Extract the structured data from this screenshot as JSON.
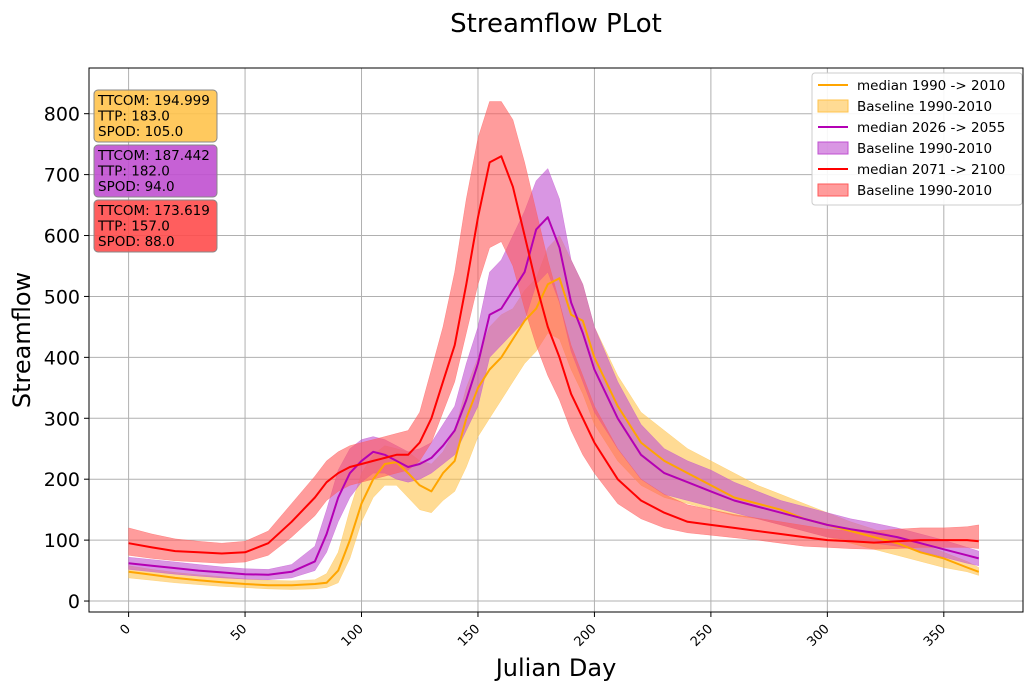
{
  "chart_data": {
    "type": "line",
    "title": "Streamflow PLot",
    "xlabel": "Julian Day",
    "ylabel": "Streamflow",
    "xlim": [
      -17,
      384
    ],
    "ylim": [
      -18,
      875
    ],
    "grid": true,
    "legend_position": "top-right",
    "xticks": [
      0,
      50,
      100,
      150,
      200,
      250,
      300,
      350
    ],
    "yticks": [
      0,
      100,
      200,
      300,
      400,
      500,
      600,
      700,
      800
    ],
    "x": [
      0,
      10,
      20,
      30,
      40,
      50,
      60,
      70,
      80,
      85,
      90,
      95,
      100,
      105,
      110,
      115,
      120,
      125,
      130,
      135,
      140,
      145,
      150,
      155,
      160,
      165,
      170,
      175,
      180,
      185,
      190,
      195,
      200,
      210,
      220,
      230,
      240,
      250,
      260,
      270,
      280,
      290,
      300,
      310,
      320,
      330,
      340,
      350,
      360,
      365
    ],
    "series": [
      {
        "name": "median 1990 -> 2010",
        "band_label": "Baseline 1990-2010",
        "color": "#FFA500",
        "band_color": "#FFC34D",
        "median": [
          48,
          43,
          38,
          34,
          31,
          28,
          26,
          26,
          28,
          30,
          50,
          100,
          160,
          200,
          225,
          228,
          210,
          190,
          180,
          210,
          230,
          300,
          350,
          380,
          400,
          430,
          460,
          480,
          520,
          530,
          470,
          460,
          400,
          320,
          260,
          230,
          210,
          190,
          170,
          160,
          150,
          135,
          125,
          115,
          105,
          95,
          80,
          70,
          55,
          48
        ],
        "lower": [
          38,
          34,
          30,
          27,
          24,
          22,
          20,
          19,
          20,
          22,
          30,
          70,
          130,
          170,
          190,
          190,
          170,
          150,
          145,
          165,
          180,
          220,
          270,
          300,
          330,
          360,
          390,
          410,
          440,
          430,
          380,
          340,
          290,
          230,
          190,
          170,
          160,
          150,
          140,
          135,
          125,
          115,
          105,
          95,
          85,
          75,
          65,
          55,
          48,
          42
        ],
        "upper": [
          58,
          52,
          47,
          43,
          40,
          36,
          34,
          33,
          35,
          45,
          80,
          150,
          210,
          240,
          255,
          250,
          245,
          230,
          225,
          245,
          280,
          350,
          400,
          450,
          470,
          480,
          510,
          530,
          580,
          600,
          560,
          520,
          450,
          370,
          310,
          280,
          250,
          230,
          210,
          190,
          175,
          160,
          145,
          130,
          118,
          105,
          95,
          80,
          65,
          55
        ]
      },
      {
        "name": "median 2026 -> 2055",
        "band_label": "Baseline 1990-2010",
        "color": "#B400B4",
        "band_color": "#C050D0",
        "median": [
          62,
          58,
          54,
          50,
          47,
          44,
          43,
          48,
          65,
          110,
          170,
          210,
          230,
          245,
          240,
          230,
          220,
          225,
          235,
          255,
          280,
          330,
          390,
          470,
          480,
          510,
          540,
          610,
          630,
          580,
          490,
          440,
          380,
          300,
          240,
          210,
          195,
          180,
          165,
          155,
          145,
          135,
          125,
          118,
          112,
          105,
          95,
          85,
          75,
          70
        ],
        "lower": [
          52,
          48,
          44,
          41,
          38,
          36,
          35,
          38,
          50,
          80,
          130,
          170,
          195,
          210,
          210,
          200,
          195,
          200,
          210,
          225,
          240,
          280,
          320,
          400,
          420,
          440,
          460,
          520,
          540,
          490,
          410,
          360,
          310,
          250,
          200,
          175,
          165,
          155,
          145,
          135,
          125,
          115,
          105,
          100,
          95,
          90,
          82,
          72,
          62,
          58
        ],
        "upper": [
          72,
          68,
          64,
          60,
          56,
          53,
          52,
          60,
          90,
          150,
          215,
          250,
          265,
          270,
          265,
          255,
          245,
          250,
          260,
          290,
          320,
          390,
          450,
          540,
          560,
          600,
          640,
          690,
          710,
          660,
          560,
          520,
          450,
          360,
          290,
          250,
          230,
          215,
          195,
          180,
          165,
          155,
          145,
          135,
          128,
          120,
          110,
          100,
          88,
          82
        ]
      },
      {
        "name": "median 2071 -> 2100",
        "band_label": "Baseline 1990-2010",
        "color": "#FF0000",
        "band_color": "#FF5A5A",
        "median": [
          95,
          88,
          82,
          80,
          78,
          80,
          95,
          130,
          170,
          195,
          210,
          220,
          225,
          230,
          235,
          240,
          240,
          260,
          300,
          360,
          420,
          520,
          630,
          720,
          730,
          680,
          600,
          520,
          450,
          400,
          340,
          300,
          260,
          200,
          165,
          145,
          130,
          125,
          120,
          115,
          110,
          105,
          100,
          98,
          96,
          98,
          100,
          100,
          100,
          98
        ],
        "lower": [
          75,
          70,
          66,
          64,
          62,
          64,
          75,
          105,
          140,
          165,
          180,
          190,
          195,
          200,
          205,
          210,
          215,
          230,
          260,
          310,
          360,
          440,
          520,
          580,
          590,
          550,
          480,
          420,
          370,
          330,
          280,
          240,
          210,
          160,
          135,
          120,
          112,
          108,
          104,
          100,
          95,
          90,
          88,
          86,
          85,
          86,
          88,
          88,
          88,
          86
        ],
        "upper": [
          120,
          110,
          102,
          98,
          95,
          98,
          115,
          160,
          205,
          230,
          245,
          255,
          260,
          265,
          270,
          275,
          280,
          310,
          380,
          450,
          540,
          660,
          760,
          820,
          820,
          790,
          720,
          640,
          560,
          490,
          420,
          370,
          320,
          250,
          200,
          175,
          158,
          150,
          142,
          136,
          130,
          124,
          118,
          115,
          115,
          118,
          120,
          120,
          122,
          125
        ]
      }
    ],
    "annotations": [
      {
        "lines": [
          "TTCOM: 194.999",
          "TTP: 183.0",
          "SPOD: 105.0"
        ],
        "color": "#FFC34D"
      },
      {
        "lines": [
          "TTCOM: 187.442",
          "TTP: 182.0",
          "SPOD: 94.0"
        ],
        "color": "#C050D0"
      },
      {
        "lines": [
          "TTCOM: 173.619",
          "TTP: 157.0",
          "SPOD: 88.0"
        ],
        "color": "#FF4C4C"
      }
    ]
  }
}
